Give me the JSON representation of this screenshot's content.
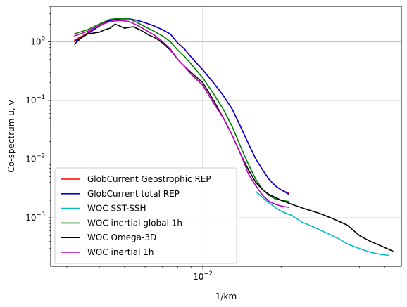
{
  "chart_data": {
    "type": "line",
    "title": "",
    "xlabel": "1/km",
    "ylabel": "Co-spectrum u, v",
    "xscale": "log",
    "yscale": "log",
    "xlim": [
      0.0026,
      0.058
    ],
    "ylim": [
      0.00015,
      4.0
    ],
    "grid": true,
    "legend_position": "lower-left",
    "x_tick_labels": [
      {
        "value": 0.01,
        "base": "10",
        "exp": "−2"
      }
    ],
    "y_tick_labels": [
      {
        "value": 1,
        "base": "10",
        "exp": "0"
      },
      {
        "value": 0.1,
        "base": "10",
        "exp": "−1"
      },
      {
        "value": 0.01,
        "base": "10",
        "exp": "−2"
      },
      {
        "value": 0.001,
        "base": "10",
        "exp": "−3"
      }
    ],
    "series": [
      {
        "name": "GlobCurrent Geostrophic REP",
        "color": "#ff0000",
        "points": [
          [
            0.0032,
            1.05
          ],
          [
            0.0036,
            1.4
          ],
          [
            0.004,
            1.9
          ],
          [
            0.0044,
            2.35
          ],
          [
            0.0048,
            2.45
          ],
          [
            0.0052,
            2.45
          ],
          [
            0.0056,
            2.3
          ],
          [
            0.006,
            2.1
          ],
          [
            0.0065,
            1.85
          ],
          [
            0.007,
            1.6
          ],
          [
            0.0075,
            1.35
          ],
          [
            0.008,
            0.95
          ],
          [
            0.0085,
            0.75
          ],
          [
            0.009,
            0.55
          ],
          [
            0.01,
            0.33
          ],
          [
            0.011,
            0.2
          ],
          [
            0.012,
            0.12
          ],
          [
            0.013,
            0.07
          ],
          [
            0.014,
            0.035
          ],
          [
            0.015,
            0.018
          ],
          [
            0.016,
            0.01
          ],
          [
            0.017,
            0.0065
          ],
          [
            0.018,
            0.0045
          ],
          [
            0.019,
            0.0035
          ],
          [
            0.02,
            0.003
          ],
          [
            0.0215,
            0.0026
          ]
        ]
      },
      {
        "name": "GlobCurrent total REP",
        "color": "#0000dd",
        "points": [
          [
            0.0032,
            1.0
          ],
          [
            0.0036,
            1.35
          ],
          [
            0.004,
            1.85
          ],
          [
            0.0044,
            2.3
          ],
          [
            0.0048,
            2.45
          ],
          [
            0.0052,
            2.45
          ],
          [
            0.0056,
            2.3
          ],
          [
            0.006,
            2.1
          ],
          [
            0.0065,
            1.85
          ],
          [
            0.007,
            1.6
          ],
          [
            0.0075,
            1.35
          ],
          [
            0.008,
            0.95
          ],
          [
            0.0085,
            0.75
          ],
          [
            0.009,
            0.55
          ],
          [
            0.01,
            0.33
          ],
          [
            0.011,
            0.2
          ],
          [
            0.012,
            0.12
          ],
          [
            0.013,
            0.07
          ],
          [
            0.014,
            0.035
          ],
          [
            0.015,
            0.018
          ],
          [
            0.016,
            0.01
          ],
          [
            0.017,
            0.0065
          ],
          [
            0.018,
            0.0045
          ],
          [
            0.019,
            0.0035
          ],
          [
            0.02,
            0.003
          ],
          [
            0.0215,
            0.0025
          ]
        ]
      },
      {
        "name": "WOC SST-SSH",
        "color": "#00bfbf",
        "points": [
          [
            0.016,
            0.0028
          ],
          [
            0.017,
            0.0022
          ],
          [
            0.018,
            0.0018
          ],
          [
            0.019,
            0.0015
          ],
          [
            0.02,
            0.0013
          ],
          [
            0.022,
            0.0011
          ],
          [
            0.024,
            0.00085
          ],
          [
            0.027,
            0.00068
          ],
          [
            0.03,
            0.00055
          ],
          [
            0.033,
            0.00045
          ],
          [
            0.036,
            0.00036
          ],
          [
            0.04,
            0.0003
          ],
          [
            0.044,
            0.00026
          ],
          [
            0.048,
            0.00024
          ],
          [
            0.052,
            0.00023
          ]
        ]
      },
      {
        "name": "WOC inertial global 1h",
        "color": "#008000",
        "points": [
          [
            0.0032,
            1.35
          ],
          [
            0.0036,
            1.6
          ],
          [
            0.004,
            2.0
          ],
          [
            0.0044,
            2.4
          ],
          [
            0.0048,
            2.5
          ],
          [
            0.0052,
            2.45
          ],
          [
            0.0056,
            2.1
          ],
          [
            0.006,
            1.8
          ],
          [
            0.0065,
            1.5
          ],
          [
            0.007,
            1.25
          ],
          [
            0.0075,
            1.0
          ],
          [
            0.008,
            0.72
          ],
          [
            0.0085,
            0.56
          ],
          [
            0.009,
            0.42
          ],
          [
            0.01,
            0.24
          ],
          [
            0.011,
            0.13
          ],
          [
            0.012,
            0.07
          ],
          [
            0.013,
            0.035
          ],
          [
            0.014,
            0.016
          ],
          [
            0.015,
            0.008
          ],
          [
            0.016,
            0.0045
          ],
          [
            0.017,
            0.003
          ],
          [
            0.018,
            0.0024
          ],
          [
            0.019,
            0.0021
          ],
          [
            0.02,
            0.002
          ],
          [
            0.0215,
            0.0019
          ]
        ]
      },
      {
        "name": "WOC Omega-3D",
        "color": "#000000",
        "points": [
          [
            0.0032,
            0.9
          ],
          [
            0.0034,
            1.15
          ],
          [
            0.0036,
            1.35
          ],
          [
            0.004,
            1.45
          ],
          [
            0.0042,
            1.6
          ],
          [
            0.0044,
            1.7
          ],
          [
            0.0046,
            2.0
          ],
          [
            0.005,
            1.7
          ],
          [
            0.0054,
            1.8
          ],
          [
            0.0058,
            1.55
          ],
          [
            0.0062,
            1.3
          ],
          [
            0.0066,
            1.15
          ],
          [
            0.007,
            0.95
          ],
          [
            0.0075,
            0.72
          ],
          [
            0.008,
            0.5
          ],
          [
            0.0085,
            0.38
          ],
          [
            0.009,
            0.3
          ],
          [
            0.01,
            0.2
          ],
          [
            0.011,
            0.1
          ],
          [
            0.012,
            0.05
          ],
          [
            0.013,
            0.025
          ],
          [
            0.014,
            0.012
          ],
          [
            0.015,
            0.0065
          ],
          [
            0.016,
            0.004
          ],
          [
            0.017,
            0.003
          ],
          [
            0.018,
            0.0025
          ],
          [
            0.02,
            0.002
          ],
          [
            0.022,
            0.0017
          ],
          [
            0.025,
            0.0014
          ],
          [
            0.028,
            0.0012
          ],
          [
            0.032,
            0.00095
          ],
          [
            0.036,
            0.00075
          ],
          [
            0.04,
            0.0005
          ],
          [
            0.044,
            0.0004
          ],
          [
            0.048,
            0.00034
          ],
          [
            0.052,
            0.00029
          ],
          [
            0.054,
            0.00027
          ]
        ]
      },
      {
        "name": "WOC inertial 1h",
        "color": "#bf00bf",
        "points": [
          [
            0.0032,
            1.25
          ],
          [
            0.0036,
            1.5
          ],
          [
            0.004,
            1.9
          ],
          [
            0.0044,
            2.2
          ],
          [
            0.0048,
            2.3
          ],
          [
            0.0052,
            2.2
          ],
          [
            0.0056,
            1.9
          ],
          [
            0.006,
            1.6
          ],
          [
            0.0065,
            1.3
          ],
          [
            0.007,
            1.0
          ],
          [
            0.0075,
            0.75
          ],
          [
            0.008,
            0.5
          ],
          [
            0.0085,
            0.38
          ],
          [
            0.009,
            0.28
          ],
          [
            0.01,
            0.18
          ],
          [
            0.011,
            0.09
          ],
          [
            0.012,
            0.05
          ],
          [
            0.013,
            0.025
          ],
          [
            0.014,
            0.012
          ],
          [
            0.015,
            0.0055
          ],
          [
            0.016,
            0.0035
          ],
          [
            0.017,
            0.0024
          ],
          [
            0.018,
            0.0019
          ],
          [
            0.019,
            0.0017
          ],
          [
            0.02,
            0.0016
          ],
          [
            0.0215,
            0.0015
          ]
        ]
      }
    ]
  }
}
